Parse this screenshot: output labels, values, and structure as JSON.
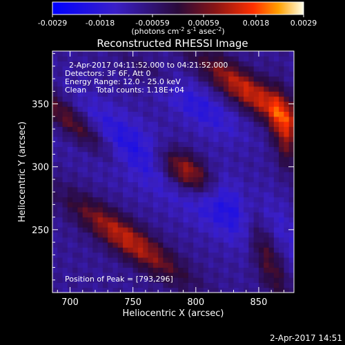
{
  "chart_data": {
    "type": "heatmap",
    "title": "Reconstructed RHESSI Image",
    "xlabel": "Heliocentric X (arcsec)",
    "ylabel": "Heliocentric Y (arcsec)",
    "xlim": [
      686,
      878
    ],
    "ylim": [
      200,
      392
    ],
    "x_ticks": [
      700,
      750,
      800,
      850
    ],
    "y_ticks": [
      250,
      300,
      350
    ],
    "annotations": [
      "2-Apr-2017 04:11:52.000 to 04:21:52.000",
      "Detectors: 3F 6F, Att 0",
      "Energy Range: 12.0 - 25.0 keV",
      "Clean    Total counts: 1.18E+04"
    ],
    "peak_label": "Position of Peak = [793,296]",
    "peak": {
      "x": 793,
      "y": 296
    },
    "colorbar": {
      "range": [
        -0.0029,
        0.0029
      ],
      "ticks": [
        "-0.0029",
        "-0.0018",
        "-0.00059",
        "0.00059",
        "0.0018",
        "0.0029"
      ],
      "unit_parts": [
        "(photons cm",
        "-2",
        " s",
        "-1",
        " asec",
        "-2",
        ")"
      ]
    },
    "sources": [
      {
        "x": 793,
        "y": 296,
        "amp": 0.0029,
        "sigma_major": 18,
        "sigma_minor": 10,
        "angle_deg": -35
      },
      {
        "x": 842,
        "y": 360,
        "amp": 0.0023,
        "sigma_major": 34,
        "sigma_minor": 9,
        "angle_deg": -35
      },
      {
        "x": 870,
        "y": 330,
        "amp": 0.0017,
        "sigma_major": 22,
        "sigma_minor": 7,
        "angle_deg": -80
      },
      {
        "x": 703,
        "y": 335,
        "amp": 0.002,
        "sigma_major": 32,
        "sigma_minor": 8,
        "angle_deg": -40
      },
      {
        "x": 745,
        "y": 243,
        "amp": 0.0022,
        "sigma_major": 38,
        "sigma_minor": 9,
        "angle_deg": -35
      },
      {
        "x": 855,
        "y": 235,
        "amp": 0.0016,
        "sigma_major": 30,
        "sigma_minor": 8,
        "angle_deg": -70
      },
      {
        "x": 765,
        "y": 375,
        "amp": 0.0007,
        "sigma_major": 20,
        "sigma_minor": 7,
        "angle_deg": -30
      },
      {
        "x": 735,
        "y": 320,
        "amp": -0.0012,
        "sigma_major": 40,
        "sigma_minor": 15,
        "angle_deg": -35
      },
      {
        "x": 825,
        "y": 270,
        "amp": -0.0013,
        "sigma_major": 45,
        "sigma_minor": 16,
        "angle_deg": -35
      },
      {
        "x": 800,
        "y": 350,
        "amp": -0.001,
        "sigma_major": 30,
        "sigma_minor": 10,
        "angle_deg": -35
      }
    ]
  },
  "footer": {
    "timestamp": "2-Apr-2017 14:51"
  },
  "colors": {
    "background": "#000000",
    "text": "#ffffff"
  }
}
